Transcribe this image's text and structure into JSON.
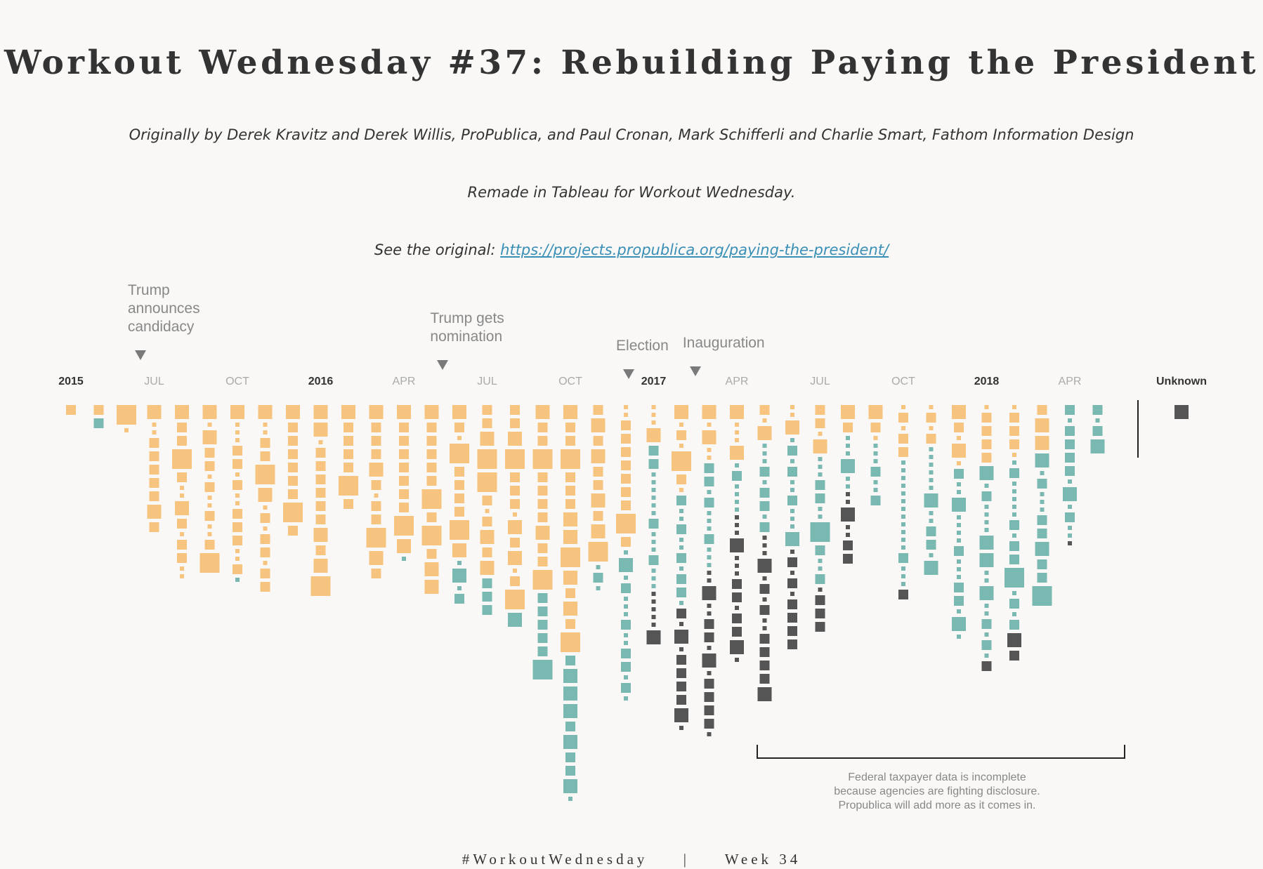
{
  "header": {
    "title": "Workout Wednesday #37: Rebuilding Paying the President",
    "credit": "Originally by Derek Kravitz and Derek Willis, ProPublica, and Paul Cronan, Mark Schifferli and Charlie Smart, Fathom Information Design",
    "remade": "Remade in Tableau for Workout Wednesday.",
    "original_prefix": "See the original:",
    "original_link": "https://projects.propublica.org/paying-the-president/"
  },
  "footer": {
    "hashtag": "#WorkoutWednesday",
    "separator": "|",
    "week": "Week 34"
  },
  "chart_data": {
    "type": "unit-square-stacks",
    "colors": {
      "o": "#f7c480",
      "t": "#7ab8b2",
      "d": "#555555"
    },
    "size_legend_note": "tokens: color letter + relative size 1-4",
    "x_ticks": [
      {
        "label": "2015",
        "year": true,
        "col": 0
      },
      {
        "label": "JUL",
        "year": false,
        "col": 3
      },
      {
        "label": "OCT",
        "year": false,
        "col": 6
      },
      {
        "label": "2016",
        "year": true,
        "col": 9
      },
      {
        "label": "APR",
        "year": false,
        "col": 12
      },
      {
        "label": "JUL",
        "year": false,
        "col": 15
      },
      {
        "label": "OCT",
        "year": false,
        "col": 18
      },
      {
        "label": "2017",
        "year": true,
        "col": 21
      },
      {
        "label": "APR",
        "year": false,
        "col": 24
      },
      {
        "label": "JUL",
        "year": false,
        "col": 27
      },
      {
        "label": "OCT",
        "year": false,
        "col": 30
      },
      {
        "label": "2018",
        "year": true,
        "col": 33
      },
      {
        "label": "APR",
        "year": false,
        "col": 36
      }
    ],
    "unknown_label": "Unknown",
    "unknown_column": "d3",
    "annotations": [
      {
        "lines": [
          "Trump",
          "announces",
          "candidacy"
        ],
        "col": 2.3
      },
      {
        "lines": [
          "Trump gets",
          "nomination"
        ],
        "col": 13.2
      },
      {
        "lines": [
          "Election"
        ],
        "col": 19.9
      },
      {
        "lines": [
          "Inauguration"
        ],
        "col": 22.3
      }
    ],
    "bracket_note": [
      "Federal taxpayer data is incomplete",
      "because agencies are fighting disclosure.",
      "Propublica will add more as it comes in."
    ],
    "columns": [
      "o2",
      "o2 t2",
      "o4 o1",
      "o3 o1 o1 o2 o2 o2 o2 o2 o3 o2",
      "o3 o2 o2 o4 o2 o1 o1 o3 o2 o1 o2 o2 o1 o1",
      "o3 o1 o3 o2 o2 o1 o2 o1 o1 o2 o1 o1 o2 o4",
      "o3 o1 o1 o1 o2 o2 o1 o2 o1 o1 o2 o2 o2 o1 o1 o2 t1",
      "o3 o1 o1 o2 o2 o4 o3 o1 o2 o1 o2 o2 o1 o2 o2",
      "o3 o2 o2 o2 o2 o2 o2 o4 o2",
      "o3 o3 o1 o2 o2 o2 o2 o2 o2 o3 o2 o3 o4",
      "o3 o2 o2 o2 o2 o4 o2",
      "o3 o2 o2 o2 o3 o2 o1 o2 o2 o4 o3 o2",
      "o3 o2 o2 o2 o2 o2 o2 o2 o4 o3 t1",
      "o3 o2 o2 o2 o2 o2 o4 o2 o4 o2 o3 o3",
      "o3 o2 o1 o4 o2 o2 o2 o2 o4 o3 t1 t3 t1 t2",
      "o2 o2 o3 o4 o4 o2 o1 o2 o3 o2 o3 t2 t2 t2",
      "o2 o2 o3 o4 o2 o2 o2 o1 o3 o2 o3 o1 o2 o4 t3",
      "o3 o2 o2 o4 o2 o2 o2 o2 o3 o2 o2 o4 t2 t2 t2 t2 t2 t4",
      "o3 o2 o2 o4 o2 o2 o2 o3 o3 o4 o3 o2 o3 o2 o4 t2 t3 t3 t3 t2 t3 t2 t2 t3 t1",
      "o2 o3 o2 o3 o2 o2 o3 o2 o3 o4 t1 t2 t1",
      "o1 o1 o2 o2 o2 o2 o2 o2 o2 o4 o2 t1 t3 t1 t2 t1 t1 t1 t2 t1 t1 t2 t2 t1 t2 t1",
      "o1 o1 o1 o3 t2 t2 t1 t1 t1 t1 t1 t1 t2 t1 t1 t1 t2 t1 t1 t1 d1 d1 d1 d1 d1 d3",
      "o3 o1 o2 o1 o4 o2 o1 t2 t1 t1 t2 t1 t1 t2 t1 t2 t2 t1 d2 d1 d3 d1 d2 d2 d2 d2 d3 d1",
      "o3 o1 o3 o1 o1 t2 t2 t1 t2 t1 t1 t1 t2 t1 t1 t1 d1 d1 d3 d1 d1 d2 d2 d1 d3 d1 d2 d2 d2 d2 d1",
      "o3 o1 o1 o1 o3 t1 t2 t1 t1 t1 t1 d1 d1 d1 d3 d1 d1 d1 d2 d2 d1 d2 d2 d3 d1",
      "o2 o1 o3 t1 t1 t1 t2 t1 t2 t2 t1 t2 d1 d1 d1 d3 d1 d2 d1 d2 d1 d1 d2 d2 d2 d2 d3",
      "o1 o1 o3 t1 t2 t1 t2 t1 t1 t2 t1 t1 t1 t3 d1 d2 d1 d2 d1 d2 d2 d2 d2",
      "o2 o2 o1 o3 t1 t1 t1 t2 t2 t1 t1 t4 t2 t1 t1 t2 d1 d2 d2 d2",
      "o3 o2 t1 t1 t1 t3 t1 t1 d1 d1 d3 d1 d1 d2 d2",
      "o3 o2 o1 t1 t1 t1 t2 t1 t1 t2",
      "o1 o2 o1 o2 o2 t1 t1 t1 t1 t1 t1 t1 t1 t1 t1 t1 t1 t2 t1 t1 t1 d2",
      "o1 o2 o1 o2 t1 t1 t1 t1 t1 t1 t3 t1 t1 t2 t2 t1 t3",
      "o3 o2 o1 o3 o1 t2 t1 t1 t3 t1 t1 t1 t1 t2 t1 t1 t1 t2 t2 t1 t3 t1",
      "o1 o2 o2 o2 o2 t3 t1 t2 t1 t1 t1 t1 t3 t3 t1 t1 t3 t1 t1 t2 t1 t2 t1 d2",
      "o1 o2 o2 o2 o1 t1 t2 t1 t1 t1 t1 t1 t2 t1 t2 t2 t4 t1 t2 t1 t2 d3 d2",
      "o2 o3 o3 t3 t1 t2 t1 t1 t1 t2 t2 t3 t2 t2 t4",
      "t2 t1 t2 t2 t2 t2 t1 t3 t1 t2 t1 t1 d1",
      "t2 t1 t2 t3"
    ]
  }
}
